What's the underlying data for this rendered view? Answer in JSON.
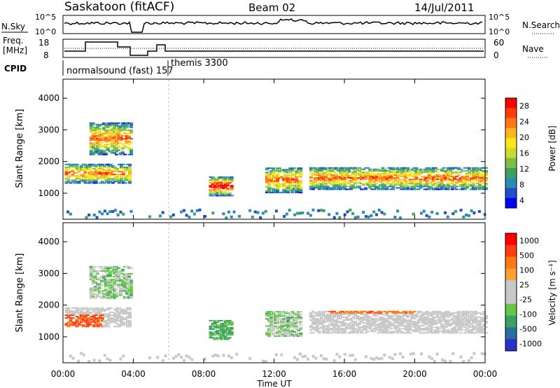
{
  "header": {
    "title": "Saskatoon (fitACF)",
    "beam": "Beam 02",
    "date": "14/Jul/2011"
  },
  "sky_panel": {
    "left_label": "N.Sky",
    "left_ticks": [
      "10^5",
      "10^0"
    ],
    "right_ticks": [
      "10^5",
      "10^0"
    ],
    "right_label": "N.Search",
    "right_legend_line": "dotted"
  },
  "freq_panel": {
    "left_label_1": "Freq.",
    "left_label_2": "[MHz]",
    "left_ticks": [
      "18",
      "8"
    ],
    "right_ticks": [
      "60",
      "0"
    ],
    "right_label": "Nave",
    "right_legend_line": "dotted"
  },
  "cpid": {
    "label": "CPID",
    "modes": [
      "normalsound (fast) 157",
      "themis 3300"
    ]
  },
  "chart_data": [
    {
      "type": "heatmap",
      "name": "power",
      "ylabel": "Slant Range [km]",
      "yticks": [
        1000,
        2000,
        3000,
        4000
      ],
      "colorbar": {
        "label": "Power [dB]",
        "ticks": [
          "28",
          "24",
          "20",
          "16",
          "12",
          "8",
          "4"
        ],
        "colors": [
          "#0000ff",
          "#1e50c8",
          "#2a8cb4",
          "#3ca064",
          "#7cbe46",
          "#c8dc32",
          "#ffe619",
          "#ffb41e",
          "#ff7814",
          "#ff3c0a",
          "#ff0000"
        ]
      },
      "features": [
        {
          "t0": 0.1,
          "t1": 3.8,
          "r0": 1300,
          "r1": 1900
        },
        {
          "t0": 1.5,
          "t1": 3.8,
          "r0": 2200,
          "r1": 3200
        },
        {
          "t0": 8.3,
          "t1": 9.6,
          "r0": 900,
          "r1": 1500
        },
        {
          "t0": 11.5,
          "t1": 13.5,
          "r0": 1000,
          "r1": 1800
        },
        {
          "t0": 14.0,
          "t1": 24.0,
          "r0": 1100,
          "r1": 1800
        }
      ]
    },
    {
      "type": "heatmap",
      "name": "velocity",
      "ylabel": "Slant Range [km]",
      "yticks": [
        1000,
        2000,
        3000,
        4000
      ],
      "colorbar": {
        "label": "Velocity [m s⁻¹]",
        "ticks": [
          "1000",
          "500",
          "100",
          "25",
          "-25",
          "-100",
          "-500",
          "-1000"
        ],
        "colors": [
          "#2832c8",
          "#286ea0",
          "#3ca064",
          "#64c846",
          "#c8c8c8",
          "#c8c8c8",
          "#ffa032",
          "#ff7814",
          "#ff3c14",
          "#ff0000"
        ]
      },
      "xlabel": "Time UT",
      "xticks": [
        "00:00",
        "04:00",
        "08:00",
        "12:00",
        "16:00",
        "20:00",
        "00:00"
      ],
      "xlim": [
        0,
        24
      ],
      "ylim": [
        180,
        4600
      ]
    }
  ]
}
